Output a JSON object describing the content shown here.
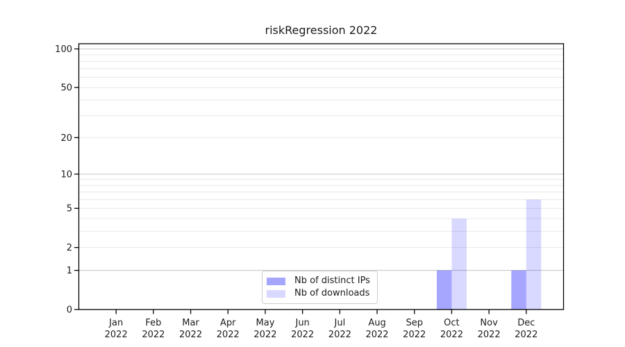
{
  "figure": {
    "title": "riskRegression 2022",
    "background": "#ffffff"
  },
  "legend": {
    "position": "lower center",
    "items": [
      {
        "label": "Nb of distinct IPs",
        "color": "rgba(0,0,255,0.35)"
      },
      {
        "label": "Nb of downloads",
        "color": "rgba(0,0,255,0.15)"
      }
    ]
  },
  "chart_data": {
    "type": "bar",
    "title": "riskRegression 2022",
    "categories": [
      "Jan",
      "Feb",
      "Mar",
      "Apr",
      "May",
      "Jun",
      "Jul",
      "Aug",
      "Sep",
      "Oct",
      "Nov",
      "Dec"
    ],
    "category_year": "2022",
    "series": [
      {
        "name": "Nb of distinct IPs",
        "color": "rgba(0,0,255,0.35)",
        "values": [
          0,
          0,
          0,
          0,
          0,
          0,
          0,
          0,
          0,
          1,
          0,
          1
        ]
      },
      {
        "name": "Nb of downloads",
        "color": "rgba(0,0,255,0.15)",
        "values": [
          0,
          0,
          0,
          0,
          0,
          0,
          0,
          0,
          0,
          4,
          0,
          6
        ]
      }
    ],
    "xlabel": "",
    "ylabel": "",
    "y_scale": "log1p",
    "y_tick_labels": [
      0,
      1,
      2,
      5,
      10,
      20,
      50,
      100
    ],
    "ylim": [
      0,
      111
    ],
    "grid": true,
    "grid_major_values": [
      1,
      10,
      100
    ],
    "grid_minor_values": [
      2,
      3,
      4,
      5,
      6,
      7,
      8,
      9,
      20,
      30,
      40,
      50,
      60,
      70,
      80,
      90
    ],
    "grid_major_color": "#c8c8c8",
    "grid_minor_color": "#e8e8e8",
    "axis_color": "#000000",
    "text_color": "#1a1a1a",
    "legend_position": "lower center"
  }
}
